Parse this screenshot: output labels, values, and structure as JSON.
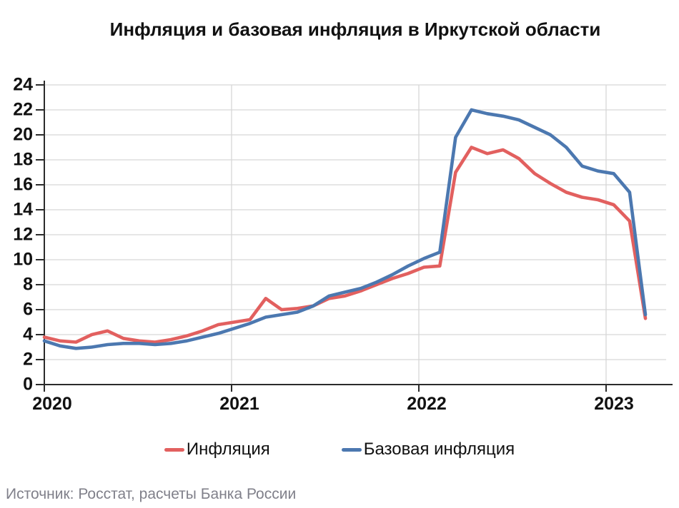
{
  "title": "Инфляция и базовая инфляция в Иркутской области",
  "source_note": "Источник: Росстат, расчеты Банка России",
  "legend": [
    {
      "id": "inflation",
      "label": "Инфляция",
      "color": "#E2605F"
    },
    {
      "id": "core-inflation",
      "label": "Базовая инфляция",
      "color": "#4C78B0"
    }
  ],
  "colors": {
    "background": "#FFFFFF",
    "gridline": "#D7D7D7",
    "axis": "#2B2B2B",
    "text": "#111111",
    "source_text": "#80808A",
    "inflation_line": "#E2605F",
    "core_inflation_line": "#4C78B0"
  },
  "chart_data": {
    "type": "line",
    "title": "Инфляция и базовая инфляция в Иркутской области",
    "xlabel": "",
    "ylabel": "",
    "ylim": [
      0,
      24
    ],
    "y_ticks": [
      0,
      2,
      4,
      6,
      8,
      10,
      12,
      14,
      16,
      18,
      20,
      22,
      24
    ],
    "x_tick_labels": [
      "2020",
      "2021",
      "2022",
      "2023"
    ],
    "grid": true,
    "legend_position": "bottom",
    "categories": [
      "2020-01",
      "2020-02",
      "2020-03",
      "2020-04",
      "2020-05",
      "2020-06",
      "2020-07",
      "2020-08",
      "2020-09",
      "2020-10",
      "2020-11",
      "2020-12",
      "2021-01",
      "2021-02",
      "2021-03",
      "2021-04",
      "2021-05",
      "2021-06",
      "2021-07",
      "2021-08",
      "2021-09",
      "2021-10",
      "2021-11",
      "2021-12",
      "2022-01",
      "2022-02",
      "2022-03",
      "2022-04",
      "2022-05",
      "2022-06",
      "2022-07",
      "2022-08",
      "2022-09",
      "2022-10",
      "2022-11",
      "2022-12",
      "2023-01",
      "2023-02",
      "2023-03"
    ],
    "series": [
      {
        "id": "inflation",
        "name": "Инфляция",
        "color": "#E2605F",
        "values": [
          3.8,
          3.5,
          3.4,
          4.0,
          4.3,
          3.7,
          3.5,
          3.4,
          3.6,
          3.9,
          4.3,
          4.8,
          5.0,
          5.2,
          6.9,
          6.0,
          6.1,
          6.3,
          6.9,
          7.1,
          7.5,
          8.0,
          8.5,
          8.9,
          9.4,
          9.5,
          17.0,
          19.0,
          18.5,
          18.8,
          18.1,
          16.9,
          16.1,
          15.4,
          15.0,
          14.8,
          14.4,
          13.1,
          5.3
        ]
      },
      {
        "id": "core-inflation",
        "name": "Базовая инфляция",
        "color": "#4C78B0",
        "values": [
          3.5,
          3.1,
          2.9,
          3.0,
          3.2,
          3.3,
          3.3,
          3.2,
          3.3,
          3.5,
          3.8,
          4.1,
          4.5,
          4.9,
          5.4,
          5.6,
          5.8,
          6.3,
          7.1,
          7.4,
          7.7,
          8.2,
          8.8,
          9.5,
          10.1,
          10.6,
          19.8,
          22.0,
          21.7,
          21.5,
          21.2,
          20.6,
          20.0,
          19.0,
          17.5,
          17.1,
          16.9,
          15.4,
          5.6
        ]
      }
    ]
  }
}
